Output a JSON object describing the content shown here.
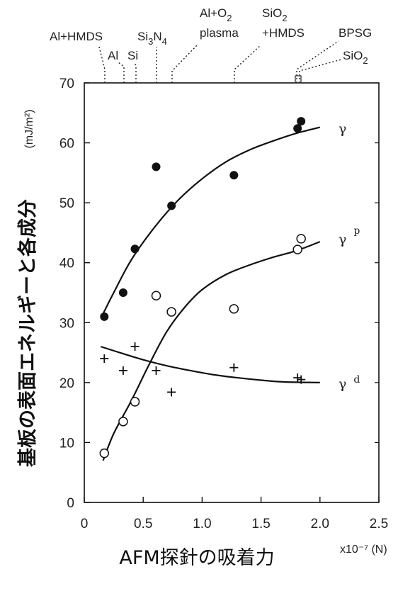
{
  "chart_data": {
    "type": "scatter",
    "title": "",
    "xlabel": "AFM探針の吸着力",
    "ylabel": "基板の表面エネルギーと各成分",
    "x_unit_label": "x10⁻⁷ (N)",
    "y_unit_label": "(mJ/m²)",
    "xlim": [
      0,
      2.5
    ],
    "ylim": [
      0,
      70
    ],
    "x_ticks": [
      "0",
      "0.5",
      "1.0",
      "1.5",
      "2.0",
      "2.5"
    ],
    "y_ticks": [
      "0",
      "10",
      "20",
      "30",
      "40",
      "50",
      "60",
      "70"
    ],
    "grid": false,
    "series": [
      {
        "name": "γ",
        "marker": "filled-circle",
        "points": [
          [
            0.17,
            31
          ],
          [
            0.33,
            35
          ],
          [
            0.43,
            42.3
          ],
          [
            0.61,
            56
          ],
          [
            0.74,
            49.5
          ],
          [
            1.27,
            54.6
          ],
          [
            1.81,
            62.4
          ],
          [
            1.84,
            63.6
          ]
        ],
        "trend": [
          [
            0.16,
            31.5
          ],
          [
            0.25,
            35
          ],
          [
            0.4,
            40.5
          ],
          [
            0.6,
            46
          ],
          [
            0.8,
            50.5
          ],
          [
            1.0,
            54
          ],
          [
            1.2,
            56.8
          ],
          [
            1.4,
            58.8
          ],
          [
            1.6,
            60.3
          ],
          [
            1.8,
            61.6
          ],
          [
            2.0,
            62.6
          ]
        ]
      },
      {
        "name": "γ p",
        "marker": "open-circle",
        "points": [
          [
            0.17,
            8.2
          ],
          [
            0.33,
            13.5
          ],
          [
            0.43,
            16.8
          ],
          [
            0.61,
            34.5
          ],
          [
            0.74,
            31.8
          ],
          [
            1.27,
            32.3
          ],
          [
            1.81,
            42.2
          ],
          [
            1.84,
            44
          ]
        ],
        "trend": [
          [
            0.16,
            7
          ],
          [
            0.25,
            11.5
          ],
          [
            0.4,
            17
          ],
          [
            0.55,
            23
          ],
          [
            0.7,
            28.5
          ],
          [
            0.85,
            32.5
          ],
          [
            1.0,
            35.5
          ],
          [
            1.2,
            38
          ],
          [
            1.4,
            39.6
          ],
          [
            1.6,
            40.9
          ],
          [
            1.8,
            42
          ],
          [
            2.0,
            43.5
          ]
        ]
      },
      {
        "name": "γ d",
        "marker": "plus",
        "points": [
          [
            0.17,
            24
          ],
          [
            0.33,
            22
          ],
          [
            0.43,
            26
          ],
          [
            0.61,
            22
          ],
          [
            0.74,
            18.4
          ],
          [
            1.27,
            22.5
          ],
          [
            1.81,
            20.8
          ],
          [
            1.84,
            20.5
          ]
        ],
        "trend": [
          [
            0.14,
            26
          ],
          [
            0.3,
            25
          ],
          [
            0.5,
            23.8
          ],
          [
            0.7,
            22.8
          ],
          [
            0.9,
            22
          ],
          [
            1.1,
            21.3
          ],
          [
            1.3,
            20.8
          ],
          [
            1.5,
            20.4
          ],
          [
            1.7,
            20.1
          ],
          [
            2.0,
            20
          ]
        ]
      }
    ],
    "top_annotations": [
      {
        "label": "Al+HMDS",
        "x": 0.17
      },
      {
        "label": "Al",
        "x": 0.33
      },
      {
        "label": "Si",
        "x": 0.43
      },
      {
        "label": "Si3N4",
        "x": 0.61
      },
      {
        "label": "Al+O2 plasma",
        "x": 0.74
      },
      {
        "label": "SiO2 +HMDS",
        "x": 1.27
      },
      {
        "label": "BPSG",
        "x": 1.81
      },
      {
        "label": "SiO2",
        "x": 1.84
      }
    ]
  }
}
